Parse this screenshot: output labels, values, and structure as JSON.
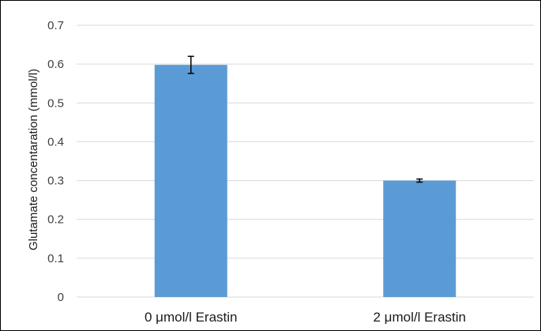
{
  "chart_data": {
    "type": "bar",
    "title": "",
    "xlabel": "",
    "ylabel": "Glutamate concentaration (mmol/l)",
    "categories": [
      "0 μmol/l Erastin",
      "2 μmol/l Erastin"
    ],
    "values": [
      0.598,
      0.3
    ],
    "error": [
      0.022,
      0.004
    ],
    "ylim": [
      0,
      0.7
    ],
    "yticks": [
      0,
      0.1,
      0.2,
      0.3,
      0.4,
      0.5,
      0.6,
      0.7
    ],
    "ytick_labels": [
      "0",
      "0.1",
      "0.2",
      "0.3",
      "0.4",
      "0.5",
      "0.6",
      "0.7"
    ],
    "grid": true,
    "legend": "none",
    "colors": {
      "bar": "#5b9bd5",
      "grid": "#d9d9d9",
      "error_bar": "#000000"
    }
  }
}
